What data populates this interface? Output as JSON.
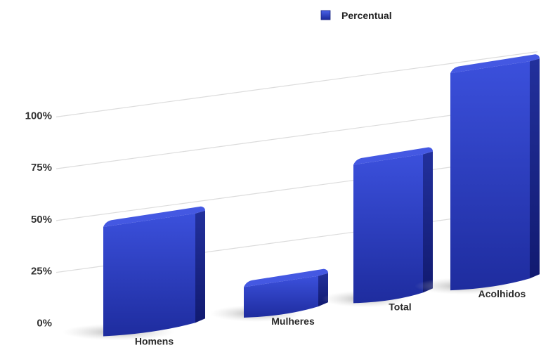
{
  "chart_data": {
    "type": "bar",
    "categories": [
      "Homens",
      "Mulheres",
      "Total",
      "Acolhidos"
    ],
    "series": [
      {
        "name": "Percentual",
        "values": [
          48,
          10,
          62,
          100
        ]
      }
    ],
    "yticks": [
      "0%",
      "25%",
      "50%",
      "75%",
      "100%"
    ],
    "ylim": [
      0,
      100
    ],
    "grid": true,
    "legend": "top-center",
    "colors": {
      "bar": "#2a3dc8",
      "bar_dark": "#141f8a",
      "bar_top": "#3a4fe0",
      "grid": "#dcdcdc"
    }
  }
}
